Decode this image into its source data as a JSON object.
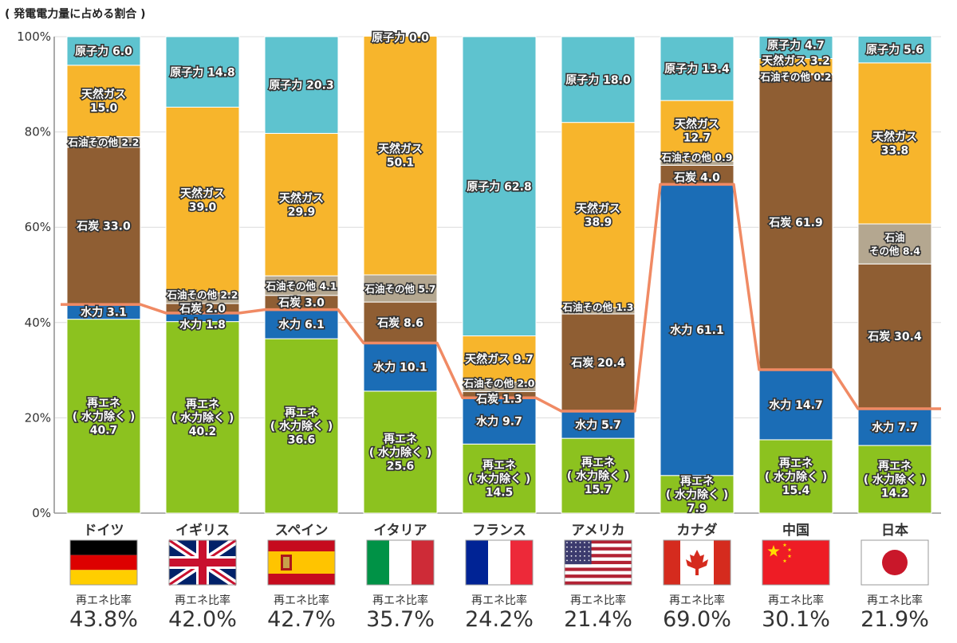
{
  "chart_data": {
    "type": "bar",
    "stacked": true,
    "title": "( 発電電力量に占める割合 )",
    "ylim": [
      0,
      100
    ],
    "yticks": [
      "0%",
      "20%",
      "40%",
      "60%",
      "80%",
      "100%"
    ],
    "grid": true,
    "categories": [
      "ドイツ",
      "イギリス",
      "スペイン",
      "イタリア",
      "フランス",
      "アメリカ",
      "カナダ",
      "中国",
      "日本"
    ],
    "series": [
      {
        "name": "再エネ（水力除く）",
        "color": "#8cc21f",
        "values": [
          40.7,
          40.2,
          36.6,
          25.6,
          14.5,
          15.7,
          7.9,
          15.4,
          14.2
        ]
      },
      {
        "name": "水力",
        "color": "#1b6db6",
        "values": [
          3.1,
          1.8,
          6.1,
          10.1,
          9.7,
          5.7,
          61.1,
          14.7,
          7.7
        ]
      },
      {
        "name": "石炭",
        "color": "#8f5e33",
        "values": [
          33.0,
          2.0,
          3.0,
          8.6,
          1.3,
          20.4,
          4.0,
          61.9,
          30.4
        ]
      },
      {
        "name": "石油その他",
        "color": "#b4a790",
        "values": [
          2.2,
          2.2,
          4.1,
          5.7,
          2.0,
          1.3,
          0.9,
          0.2,
          8.4
        ]
      },
      {
        "name": "天然ガス",
        "color": "#f7b52c",
        "values": [
          15.0,
          39.0,
          29.9,
          50.1,
          9.7,
          38.9,
          12.7,
          3.2,
          33.8
        ]
      },
      {
        "name": "原子力",
        "color": "#5ec3cf",
        "values": [
          6.0,
          14.8,
          20.3,
          0.0,
          62.8,
          18.0,
          13.4,
          4.7,
          5.6
        ]
      }
    ],
    "segment_labels": [
      [
        "再エネ\n( 水力除く )\n40.7",
        "水力 3.1",
        "石炭 33.0",
        "石油その他 2.2",
        "天然ガス\n15.0",
        "原子力 6.0"
      ],
      [
        "再エネ\n( 水力除く )\n40.2",
        "水力 1.8",
        "石炭 2.0",
        "石油その他 2.2",
        "天然ガス\n39.0",
        "原子力 14.8"
      ],
      [
        "再エネ\n( 水力除く )\n36.6",
        "水力 6.1",
        "石炭 3.0",
        "石油その他 4.1",
        "天然ガス\n29.9",
        "原子力 20.3"
      ],
      [
        "再エネ\n( 水力除く )\n25.6",
        "水力 10.1",
        "石炭 8.6",
        "石油その他 5.7",
        "天然ガス\n50.1",
        "原子力 0.0"
      ],
      [
        "再エネ\n( 水力除く )\n14.5",
        "水力 9.7",
        "石炭 1.3",
        "石油その他 2.0",
        "天然ガス 9.7",
        "原子力 62.8"
      ],
      [
        "再エネ\n( 水力除く )\n15.7",
        "水力 5.7",
        "石炭 20.4",
        "石油その他 1.3",
        "天然ガス\n38.9",
        "原子力 18.0"
      ],
      [
        "再エネ\n( 水力除く )\n7.9",
        "水力 61.1",
        "石炭 4.0",
        "石油その他 0.9",
        "天然ガス\n12.7",
        "原子力 13.4"
      ],
      [
        "再エネ\n( 水力除く )\n15.4",
        "水力 14.7",
        "石炭 61.9",
        "石油その他 0.2",
        "天然ガス 3.2",
        "原子力 4.7"
      ],
      [
        "再エネ\n( 水力除く )\n14.2",
        "水力 7.7",
        "石炭 30.4",
        "石油\nその他 8.4",
        "天然ガス\n33.8",
        "原子力 5.6"
      ]
    ],
    "renewable_ratio": {
      "label": "再エネ比率",
      "line_color": "#f08a64",
      "values": [
        43.8,
        42.0,
        42.7,
        35.7,
        24.2,
        21.4,
        69.0,
        30.1,
        21.9
      ],
      "value_labels": [
        "43.8%",
        "42.0%",
        "42.7%",
        "35.7%",
        "24.2%",
        "21.4%",
        "69.0%",
        "30.1%",
        "21.9%"
      ]
    },
    "highlight_category": "日本",
    "highlight_color": "#e60012",
    "flag_icons": [
      "germany-flag",
      "uk-flag",
      "spain-flag",
      "italy-flag",
      "france-flag",
      "usa-flag",
      "canada-flag",
      "china-flag",
      "japan-flag"
    ]
  }
}
